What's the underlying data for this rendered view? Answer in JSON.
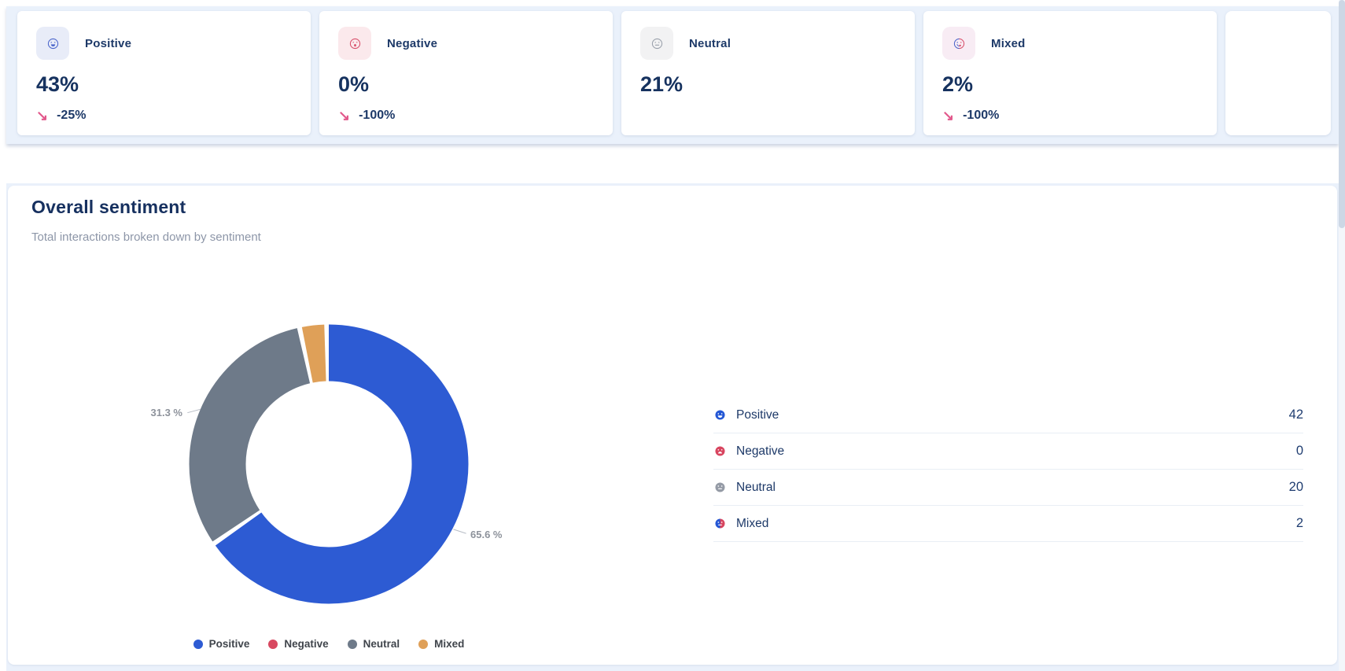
{
  "stats": {
    "trend_arrow": "↘",
    "cards": [
      {
        "label": "Positive",
        "value": "43%",
        "change": "-25%"
      },
      {
        "label": "Negative",
        "value": "0%",
        "change": "-100%"
      },
      {
        "label": "Neutral",
        "value": "21%",
        "change": ""
      },
      {
        "label": "Mixed",
        "value": "2%",
        "change": "-100%"
      }
    ]
  },
  "overall": {
    "title": "Overall sentiment",
    "subtitle": "Total interactions broken down by sentiment",
    "list": [
      {
        "label": "Positive",
        "value": "42"
      },
      {
        "label": "Negative",
        "value": "0"
      },
      {
        "label": "Neutral",
        "value": "20"
      },
      {
        "label": "Mixed",
        "value": "2"
      }
    ]
  },
  "chart_data": {
    "type": "pie",
    "donut": true,
    "title": "Overall sentiment",
    "categories": [
      "Positive",
      "Negative",
      "Neutral",
      "Mixed"
    ],
    "values": [
      42,
      0,
      20,
      2
    ],
    "percentages": [
      65.6,
      0,
      31.3,
      3.1
    ],
    "colors": [
      "#2d5bd3",
      "#d84860",
      "#6e7a89",
      "#dfa058"
    ],
    "percent_labels": {
      "positive": "65.6 %",
      "neutral": "31.3 %"
    },
    "legend_position": "bottom",
    "start_angle_deg": 0,
    "direction": "clockwise"
  },
  "palette": {
    "navy_text": "#1d3968",
    "value_navy": "#16325f",
    "trend_pink": "#e2598c",
    "section_bg": "#eaf1fb",
    "subtitle_gray": "#8d96a8",
    "pct_label_gray": "#8d929b",
    "divider": "#e9eef5",
    "positive_blue": "#2d5bd3",
    "negative_red": "#d84860",
    "neutral_gray": "#6e7a89",
    "mixed_orange": "#dfa058"
  }
}
